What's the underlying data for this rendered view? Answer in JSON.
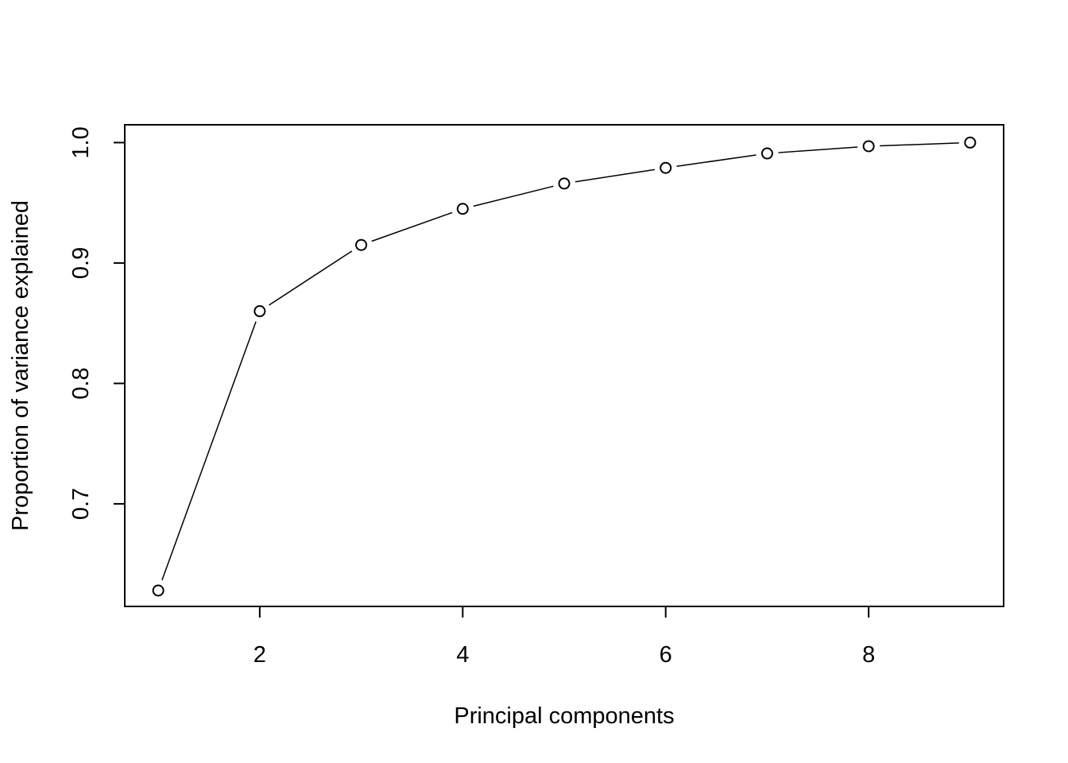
{
  "chart_data": {
    "type": "line",
    "title": "",
    "xlabel": "Principal components",
    "ylabel": "Proportion of variance explained",
    "x": [
      1,
      2,
      3,
      4,
      5,
      6,
      7,
      8,
      9
    ],
    "series": [
      {
        "values": [
          0.628,
          0.86,
          0.915,
          0.945,
          0.966,
          0.979,
          0.991,
          0.997,
          1.0
        ]
      }
    ],
    "xlim": [
      0.67,
      9.33
    ],
    "ylim": [
      0.6148,
      1.0148
    ],
    "xticks": [
      2,
      4,
      6,
      8
    ],
    "xtick_labels": [
      "2",
      "4",
      "6",
      "8"
    ],
    "yticks": [
      0.7,
      0.8,
      0.9,
      1.0
    ],
    "ytick_labels": [
      "0.7",
      "0.8",
      "0.9",
      "1.0"
    ],
    "marker": "open-circle",
    "grid": false,
    "legend": "none",
    "colors": {
      "line": "#000000",
      "marker_stroke": "#000000",
      "marker_fill": "#ffffff",
      "background": "#ffffff"
    }
  }
}
